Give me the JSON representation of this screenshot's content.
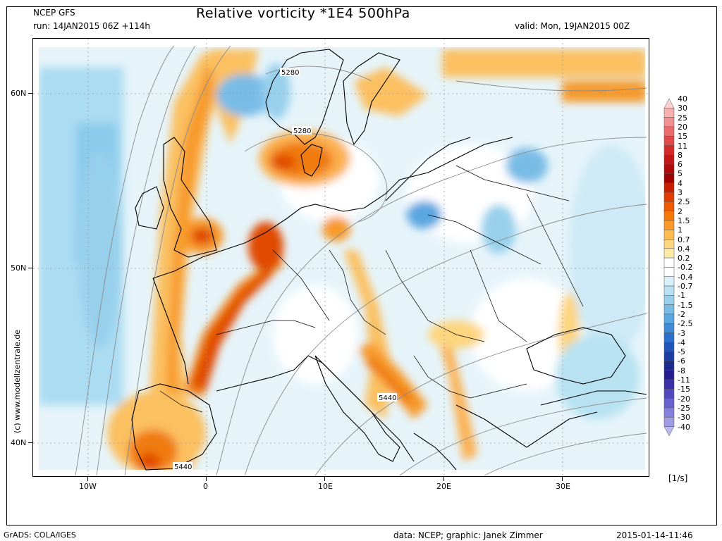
{
  "header": {
    "model": "NCEP GFS",
    "run": "run: 14JAN2015 06Z +114h",
    "title": "Relative vorticity *1E4 500hPa",
    "valid": "valid: Mon, 19JAN2015 00Z"
  },
  "map": {
    "lat_labels": [
      "60N",
      "50N",
      "40N"
    ],
    "lon_labels": [
      "10W",
      "0",
      "10E",
      "20E",
      "30E"
    ],
    "contour_labels": [
      "5280",
      "5280",
      "5440",
      "5440"
    ],
    "watermark": "(c) www.modellzentrale.de"
  },
  "colorbar": {
    "unit": "[1/s]",
    "labels": [
      "40",
      "30",
      "25",
      "20",
      "15",
      "11",
      "8",
      "6",
      "5",
      "4",
      "3",
      "2.5",
      "2",
      "1.5",
      "1",
      "0.7",
      "0.4",
      "0.2",
      "-0.2",
      "-0.4",
      "-0.7",
      "-1",
      "-1.5",
      "-2",
      "-2.5",
      "-3",
      "-4",
      "-5",
      "-6",
      "-8",
      "-11",
      "-15",
      "-20",
      "-25",
      "-30",
      "-40"
    ],
    "colors": [
      "#fbd0d0",
      "#f7b0b0",
      "#f29090",
      "#ec6c6c",
      "#e24a4a",
      "#d62a2a",
      "#c41616",
      "#b00a0a",
      "#a00000",
      "#c81e00",
      "#e03c00",
      "#f05a00",
      "#f77a08",
      "#fb9a28",
      "#fdbb50",
      "#fdd57e",
      "#fde9a8",
      "#ffffff",
      "#ffffff",
      "#d8f0f8",
      "#b8e2f2",
      "#98d0ec",
      "#78bce6",
      "#5aa6e0",
      "#3e8cd8",
      "#2a70cc",
      "#1e56be",
      "#1a3ea6",
      "#1c2a8e",
      "#241c90",
      "#3a30a8",
      "#5248c0",
      "#6a62d0",
      "#8480dc",
      "#a09ce6",
      "#bcb8f0"
    ]
  },
  "footer": {
    "left": "GrADS: COLA/IGES",
    "center": "data: NCEP; graphic: Janek Zimmer",
    "right": "2015-01-14-11:46"
  }
}
